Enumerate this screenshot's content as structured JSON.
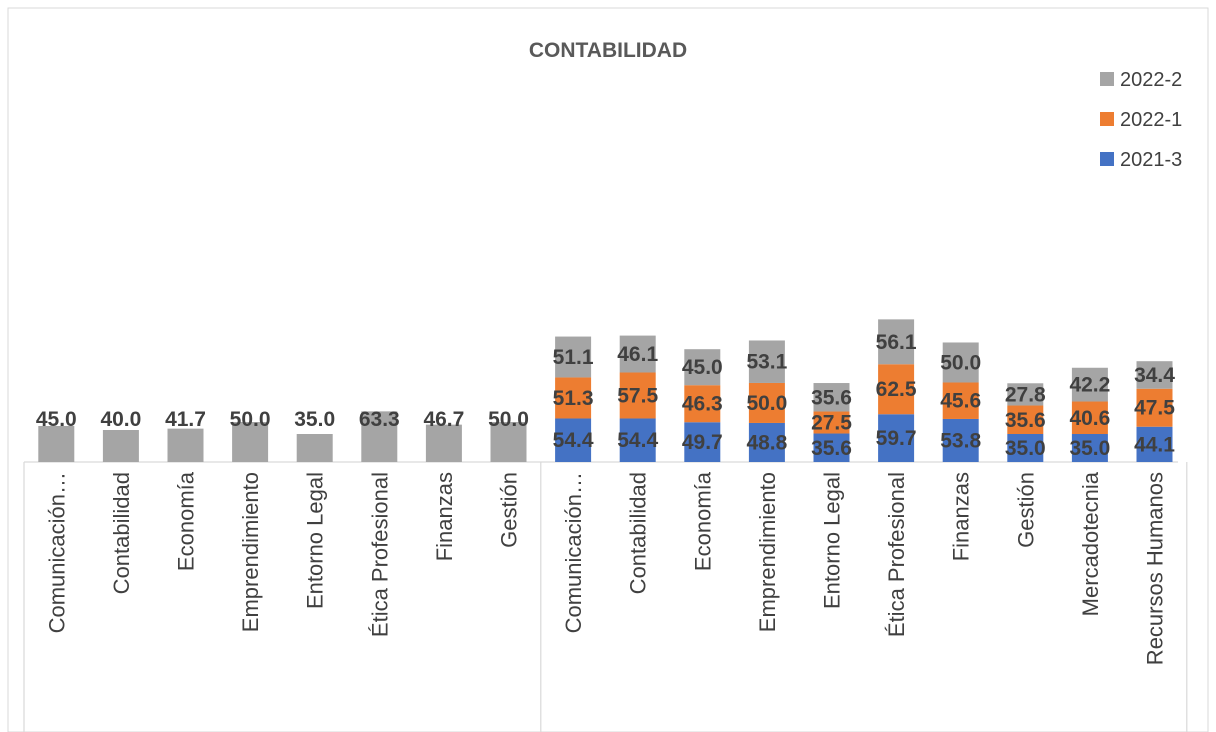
{
  "chart_data": {
    "type": "bar",
    "stacked": true,
    "title": "CONTABILIDAD",
    "xlabel": "",
    "ylabel": "",
    "grid": false,
    "legend_position": "top-right",
    "colors": {
      "2021-3": "#4472C4",
      "2022-1": "#ED7D31",
      "2022-2": "#A5A5A5"
    },
    "legend": [
      "2022-2",
      "2022-1",
      "2021-3"
    ],
    "groups": [
      {
        "categories": [
          "Comunicación…",
          "Contabilidad",
          "Economía",
          "Emprendimiento",
          "Entorno Legal",
          "Ética Profesional",
          "Finanzas",
          "Gestión"
        ],
        "series": [
          {
            "name": "2022-2",
            "values": [
              45.0,
              40.0,
              41.7,
              50.0,
              35.0,
              63.3,
              46.7,
              50.0
            ]
          }
        ]
      },
      {
        "categories": [
          "Comunicación…",
          "Contabilidad",
          "Economía",
          "Emprendimiento",
          "Entorno Legal",
          "Ética Profesional",
          "Finanzas",
          "Gestión",
          "Mercadotecnia",
          "Recursos Humanos"
        ],
        "series": [
          {
            "name": "2021-3",
            "values": [
              54.4,
              54.4,
              49.7,
              48.8,
              35.6,
              59.7,
              53.8,
              35.0,
              35.0,
              44.1
            ]
          },
          {
            "name": "2022-1",
            "values": [
              51.3,
              57.5,
              46.3,
              50.0,
              27.5,
              62.5,
              45.6,
              35.6,
              40.6,
              47.5
            ]
          },
          {
            "name": "2022-2",
            "values": [
              51.1,
              46.1,
              45.0,
              53.1,
              35.6,
              56.1,
              50.0,
              27.8,
              42.2,
              34.4
            ]
          }
        ]
      }
    ]
  }
}
